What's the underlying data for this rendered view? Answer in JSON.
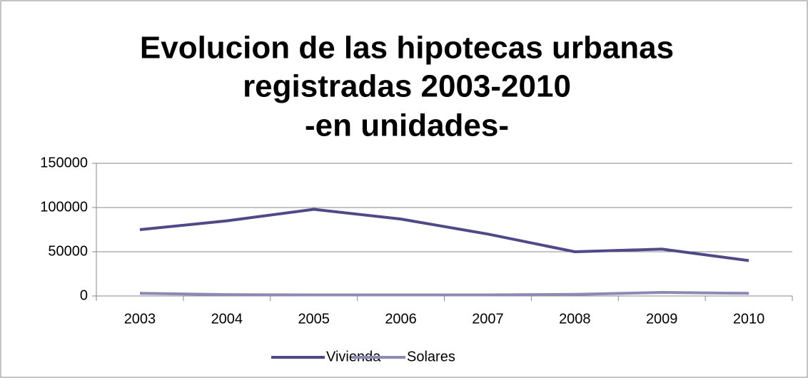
{
  "chart_data": {
    "type": "line",
    "title": [
      "Evolucion de las hipotecas urbanas",
      "registradas 2003-2010",
      "-en unidades-"
    ],
    "categories": [
      "2003",
      "2004",
      "2005",
      "2006",
      "2007",
      "2008",
      "2009",
      "2010"
    ],
    "series": [
      {
        "name": "Vivienda",
        "color": "#4f4a87",
        "values": [
          75000,
          85000,
          98000,
          87000,
          70000,
          50000,
          53000,
          40000
        ]
      },
      {
        "name": "Solares",
        "color": "#8c8ab4",
        "values": [
          3000,
          1500,
          1200,
          1200,
          1200,
          1800,
          4000,
          3000
        ]
      }
    ],
    "ylim": [
      0,
      150000
    ],
    "yticks": [
      0,
      50000,
      100000,
      150000
    ],
    "grid": true,
    "legend": "bottom"
  }
}
